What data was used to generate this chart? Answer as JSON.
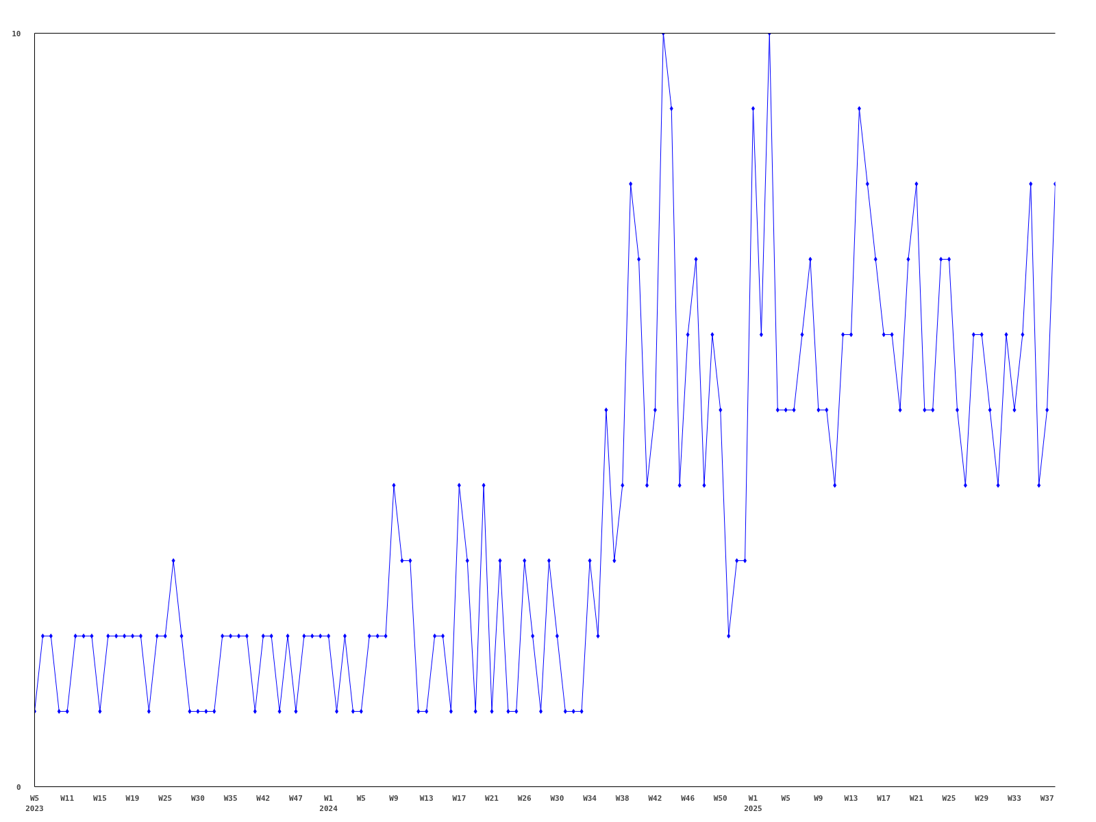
{
  "chart_data": {
    "type": "line",
    "categories": [
      "W5\n2023",
      null,
      null,
      null,
      "W11",
      null,
      null,
      null,
      "W15",
      null,
      null,
      null,
      "W19",
      null,
      null,
      null,
      "W25",
      null,
      null,
      null,
      "W30",
      null,
      null,
      null,
      "W35",
      null,
      null,
      null,
      "W42",
      null,
      null,
      null,
      "W47",
      null,
      null,
      null,
      "W1\n2024",
      null,
      null,
      null,
      "W5",
      null,
      null,
      null,
      "W9",
      null,
      null,
      null,
      "W13",
      null,
      null,
      null,
      "W17",
      null,
      null,
      null,
      "W21",
      null,
      null,
      null,
      "W26",
      null,
      null,
      null,
      "W30",
      null,
      null,
      null,
      "W34",
      null,
      null,
      null,
      "W38",
      null,
      null,
      null,
      "W42",
      null,
      null,
      null,
      "W46",
      null,
      null,
      null,
      "W50",
      null,
      null,
      null,
      "W1\n2025",
      null,
      null,
      null,
      "W5",
      null,
      null,
      null,
      "W9",
      null,
      null,
      null,
      "W13",
      null,
      null,
      null,
      "W17",
      null,
      null,
      null,
      "W21",
      null,
      null,
      null,
      "W25",
      null,
      null,
      null,
      "W29",
      null,
      null,
      null,
      "W33",
      null,
      null,
      null,
      "W37",
      null
    ],
    "series": [
      {
        "color": "#0000ff",
        "values": [
          1,
          2,
          2,
          1,
          1,
          2,
          2,
          2,
          1,
          2,
          2,
          2,
          2,
          2,
          1,
          2,
          2,
          3,
          2,
          1,
          1,
          1,
          1,
          2,
          2,
          2,
          2,
          1,
          2,
          2,
          1,
          2,
          1,
          2,
          2,
          2,
          2,
          1,
          2,
          1,
          1,
          2,
          2,
          2,
          4,
          3,
          3,
          1,
          1,
          2,
          2,
          1,
          4,
          3,
          1,
          4,
          1,
          3,
          1,
          1,
          3,
          2,
          1,
          3,
          2,
          1,
          1,
          1,
          3,
          2,
          5,
          3,
          4,
          8,
          7,
          4,
          5,
          10,
          9,
          4,
          6,
          7,
          4,
          6,
          5,
          2,
          3,
          3,
          9,
          6,
          10,
          5,
          5,
          5,
          6,
          7,
          5,
          5,
          4,
          6,
          6,
          9,
          8,
          7,
          6,
          6,
          5,
          7,
          8,
          5,
          5,
          7,
          7,
          5,
          4,
          6,
          6,
          5,
          4,
          6,
          5,
          6,
          8,
          4,
          5,
          8
        ]
      }
    ],
    "ylim": [
      0,
      10
    ],
    "yticks": [
      0,
      10
    ],
    "marker": "diamond",
    "line_style": "solid"
  }
}
